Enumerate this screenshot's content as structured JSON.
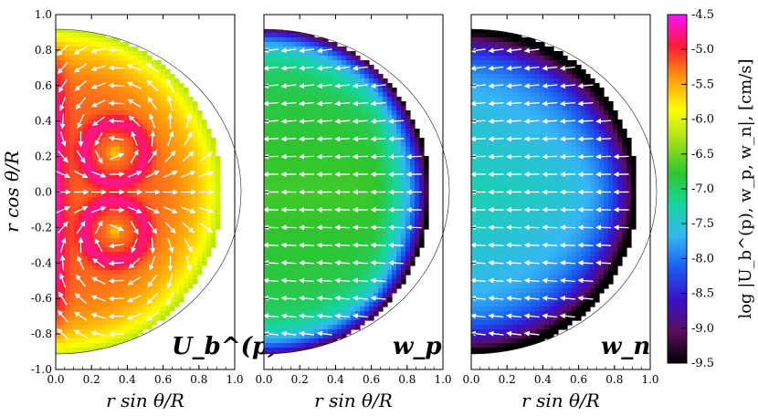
{
  "chart_data": [
    {
      "type": "heatmap",
      "panel_label": "U_b^(p)",
      "xlabel": "r sin θ/R",
      "ylabel": "r cos θ/R",
      "xlim": [
        0.0,
        1.0
      ],
      "ylim": [
        -1.0,
        1.0
      ],
      "xticks": [
        "0.0",
        "0.2",
        "0.4",
        "0.6",
        "0.8",
        "1.0"
      ],
      "yticks": [
        "-1.0",
        "-0.8",
        "-0.6",
        "-0.4",
        "-0.2",
        "0.0",
        "0.2",
        "0.4",
        "0.6",
        "0.8",
        "1.0"
      ],
      "domain_radius": 0.91,
      "flow": "two counter-rotating vortices centred near (0.33, 0.22) and (0.33, -0.22)",
      "vortex_centers": [
        [
          0.33,
          0.22
        ],
        [
          0.33,
          -0.22
        ]
      ],
      "log_value_range": [
        -6.5,
        -4.8
      ]
    },
    {
      "type": "heatmap",
      "panel_label": "w_p",
      "xlabel": "r sin θ/R",
      "xlim": [
        0.0,
        1.0
      ],
      "ylim": [
        -1.0,
        1.0
      ],
      "xticks": [
        "0.0",
        "0.2",
        "0.4",
        "0.6",
        "0.8",
        "1.0"
      ],
      "domain_radius": 0.91,
      "flow": "predominantly horizontal, pointing toward the axis",
      "log_value_range": [
        -8.6,
        -6.7
      ]
    },
    {
      "type": "heatmap",
      "panel_label": "w_n",
      "xlabel": "r sin θ/R",
      "xlim": [
        0.0,
        1.0
      ],
      "ylim": [
        -1.0,
        1.0
      ],
      "xticks": [
        "0.0",
        "0.2",
        "0.4",
        "0.6",
        "0.8",
        "1.0"
      ],
      "domain_radius": 0.91,
      "flow": "predominantly horizontal, pointing toward the axis",
      "log_value_range": [
        -9.5,
        -7.2
      ]
    }
  ],
  "colorbar": {
    "label": "log |U_b^(p), w_p, w_n|, [cm/s]",
    "min": -9.5,
    "max": -4.5,
    "ticks": [
      "-4.5",
      "-5.0",
      "-5.5",
      "-6.0",
      "-6.5",
      "-7.0",
      "-7.5",
      "-8.0",
      "-8.5",
      "-9.0",
      "-9.5"
    ],
    "colormap": [
      "#000000",
      "#5a0f5e",
      "#3a10c8",
      "#1a5cf2",
      "#35b6f5",
      "#15d6a0",
      "#2ec52e",
      "#a2df1a",
      "#ffff00",
      "#ff9b0a",
      "#ff1a36",
      "#ff10ff"
    ]
  }
}
